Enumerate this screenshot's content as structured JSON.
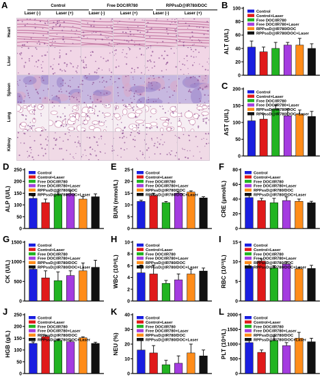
{
  "histology": {
    "panel_label": "A",
    "groups": [
      "Control",
      "Free DOC/IR780",
      "RPPssD@IR780/DOC"
    ],
    "conditions": [
      "Laser (-)",
      "Laser (+)",
      "Laser (-)",
      "Laser (+)",
      "Laser (-)",
      "Laser (+)"
    ],
    "organs": [
      "Heart",
      "Liver",
      "Spleen",
      "Lung",
      "Kidney"
    ]
  },
  "legend_colors": [
    "#1a1ee0",
    "#e01a1a",
    "#22b422",
    "#a43ce0",
    "#ff8c1a",
    "#111111"
  ],
  "chart_data": [
    {
      "panel": "B",
      "type": "bar",
      "ylabel": "ALT (U/L)",
      "ylim": [
        0,
        100
      ],
      "yticks": [
        0,
        20,
        40,
        60,
        80,
        100
      ],
      "series": [
        {
          "name": "Control",
          "values": [
            42
          ]
        },
        {
          "name": "Control+Laser",
          "values": [
            35
          ]
        },
        {
          "name": "Free DOC/IR780",
          "values": [
            40
          ]
        },
        {
          "name": "Free DOC/IR780+Laser",
          "values": [
            45
          ]
        },
        {
          "name": "RPPssD@IR780/DOC",
          "values": [
            45
          ]
        },
        {
          "name": "RPPssD@IR780/DOC+Laser",
          "values": [
            40
          ]
        }
      ],
      "errors": [
        9,
        7,
        9,
        4,
        10,
        7
      ]
    },
    {
      "panel": "C",
      "type": "bar",
      "ylabel": "AST (U/L)",
      "ylim": [
        0,
        200
      ],
      "yticks": [
        0,
        50,
        100,
        150,
        200
      ],
      "series": [
        {
          "name": "Control",
          "values": [
            105
          ]
        },
        {
          "name": "Control+Laser",
          "values": [
            110
          ]
        },
        {
          "name": "Free DOC/IR780",
          "values": [
            140
          ]
        },
        {
          "name": "Free DOC/IR780+Laser",
          "values": [
            120
          ]
        },
        {
          "name": "RPPssD@IR780/DOC",
          "values": [
            125
          ]
        },
        {
          "name": "RPPssD@IR780/DOC+Laser",
          "values": [
            118
          ]
        }
      ],
      "errors": [
        20,
        15,
        12,
        20,
        12,
        15
      ]
    },
    {
      "panel": "D",
      "type": "bar",
      "ylabel": "ALP (U/L)",
      "ylim": [
        0,
        250
      ],
      "yticks": [
        0,
        50,
        100,
        150,
        200,
        250
      ],
      "series": [
        {
          "name": "Control",
          "values": [
            128
          ]
        },
        {
          "name": "Control+Laser",
          "values": [
            110
          ]
        },
        {
          "name": "Free DOC/IR780",
          "values": [
            145
          ]
        },
        {
          "name": "Free DOC/IR780+Laser",
          "values": [
            148
          ]
        },
        {
          "name": "RPPssD@IR780/DOC",
          "values": [
            125
          ]
        },
        {
          "name": "RPPssD@IR780/DOC+Laser",
          "values": [
            135
          ]
        }
      ],
      "errors": [
        10,
        15,
        10,
        12,
        10,
        12
      ]
    },
    {
      "panel": "E",
      "type": "bar",
      "ylabel": "BUN (mmol/L)",
      "ylim": [
        0,
        25
      ],
      "yticks": [
        0,
        5,
        10,
        15,
        20,
        25
      ],
      "series": [
        {
          "name": "Control",
          "values": [
            11.5
          ]
        },
        {
          "name": "Control+Laser",
          "values": [
            14
          ]
        },
        {
          "name": "Free DOC/IR780",
          "values": [
            11
          ]
        },
        {
          "name": "Free DOC/IR780+Laser",
          "values": [
            15
          ]
        },
        {
          "name": "RPPssD@IR780/DOC",
          "values": [
            15.5
          ]
        },
        {
          "name": "RPPssD@IR780/DOC+Laser",
          "values": [
            13
          ]
        }
      ],
      "errors": [
        0.5,
        1,
        0.5,
        0.5,
        0.5,
        0.5
      ]
    },
    {
      "panel": "F",
      "type": "bar",
      "ylabel": "CRE (μmol/L)",
      "ylim": [
        0,
        80
      ],
      "yticks": [
        0,
        20,
        40,
        60,
        80
      ],
      "series": [
        {
          "name": "Control",
          "values": [
            42
          ]
        },
        {
          "name": "Control+Laser",
          "values": [
            38
          ]
        },
        {
          "name": "Free DOC/IR780",
          "values": [
            35
          ]
        },
        {
          "name": "Free DOC/IR780+Laser",
          "values": [
            38
          ]
        },
        {
          "name": "RPPssD@IR780/DOC",
          "values": [
            37
          ]
        },
        {
          "name": "RPPssD@IR780/DOC+Laser",
          "values": [
            35
          ]
        }
      ],
      "errors": [
        5,
        3,
        6,
        5,
        3,
        2
      ]
    },
    {
      "panel": "G",
      "type": "bar",
      "ylabel": "CK (U/L)",
      "ylim": [
        0,
        1500
      ],
      "yticks": [
        0,
        500,
        1000,
        1500
      ],
      "series": [
        {
          "name": "Control",
          "values": [
            810
          ]
        },
        {
          "name": "Control+Laser",
          "values": [
            590
          ]
        },
        {
          "name": "Free DOC/IR780",
          "values": [
            520
          ]
        },
        {
          "name": "Free DOC/IR780+Laser",
          "values": [
            650
          ]
        },
        {
          "name": "RPPssD@IR780/DOC",
          "values": [
            770
          ]
        },
        {
          "name": "RPPssD@IR780/DOC+Laser",
          "values": [
            860
          ]
        }
      ],
      "errors": [
        60,
        180,
        220,
        120,
        200,
        180
      ]
    },
    {
      "panel": "H",
      "type": "bar",
      "ylabel": "WBC (10⁹/L)",
      "ylim": [
        0,
        10
      ],
      "yticks": [
        0,
        2,
        4,
        6,
        8,
        10
      ],
      "series": [
        {
          "name": "Control",
          "values": [
            4.8
          ]
        },
        {
          "name": "Control+Laser",
          "values": [
            4.6
          ]
        },
        {
          "name": "Free DOC/IR780",
          "values": [
            3.0
          ]
        },
        {
          "name": "Free DOC/IR780+Laser",
          "values": [
            3.6
          ]
        },
        {
          "name": "RPPssD@IR780/DOC",
          "values": [
            4.6
          ]
        },
        {
          "name": "RPPssD@IR780/DOC+Laser",
          "values": [
            5.1
          ]
        }
      ],
      "errors": [
        1.3,
        1.5,
        0.5,
        1,
        0.8,
        0.5
      ]
    },
    {
      "panel": "I",
      "type": "bar",
      "ylabel": "RBC (10¹²/L)",
      "ylim": [
        0,
        15
      ],
      "yticks": [
        0,
        5,
        10,
        15
      ],
      "series": [
        {
          "name": "Control",
          "values": [
            8.8
          ]
        },
        {
          "name": "Control+Laser",
          "values": [
            10.2
          ]
        },
        {
          "name": "Free DOC/IR780",
          "values": [
            8.4
          ]
        },
        {
          "name": "Free DOC/IR780+Laser",
          "values": [
            9.4
          ]
        },
        {
          "name": "RPPssD@IR780/DOC",
          "values": [
            8.2
          ]
        },
        {
          "name": "RPPssD@IR780/DOC+Laser",
          "values": [
            8.3
          ]
        }
      ],
      "errors": [
        0.8,
        0.5,
        0.6,
        0.6,
        0.4,
        0.8
      ]
    },
    {
      "panel": "J",
      "type": "bar",
      "ylabel": "HGB (g/L)",
      "ylim": [
        0,
        250
      ],
      "yticks": [
        0,
        50,
        100,
        150,
        200,
        250
      ],
      "series": [
        {
          "name": "Control",
          "values": [
            128
          ]
        },
        {
          "name": "Control+Laser",
          "values": [
            157
          ]
        },
        {
          "name": "Free DOC/IR780",
          "values": [
            140
          ]
        },
        {
          "name": "Free DOC/IR780+Laser",
          "values": [
            135
          ]
        },
        {
          "name": "RPPssD@IR780/DOC",
          "values": [
            152
          ]
        },
        {
          "name": "RPPssD@IR780/DOC+Laser",
          "values": [
            128
          ]
        }
      ],
      "errors": [
        6,
        5,
        5,
        5,
        4,
        5
      ]
    },
    {
      "panel": "K",
      "type": "bar",
      "ylabel": "NEU (%)",
      "ylim": [
        0,
        40
      ],
      "yticks": [
        0,
        10,
        20,
        30,
        40
      ],
      "series": [
        {
          "name": "Control",
          "values": [
            16
          ]
        },
        {
          "name": "Control+Laser",
          "values": [
            14
          ]
        },
        {
          "name": "Free DOC/IR780",
          "values": [
            6
          ]
        },
        {
          "name": "Free DOC/IR780+Laser",
          "values": [
            7
          ]
        },
        {
          "name": "RPPssD@IR780/DOC",
          "values": [
            14
          ]
        },
        {
          "name": "RPPssD@IR780/DOC+Laser",
          "values": [
            12
          ]
        }
      ],
      "errors": [
        8,
        5,
        3,
        5,
        6,
        4
      ]
    },
    {
      "panel": "L",
      "type": "bar",
      "ylabel": "PLT (10⁹/L)",
      "ylim": [
        0,
        2000
      ],
      "yticks": [
        0,
        500,
        1000,
        1500,
        2000
      ],
      "series": [
        {
          "name": "Control",
          "values": [
            1050
          ]
        },
        {
          "name": "Control+Laser",
          "values": [
            720
          ]
        },
        {
          "name": "Free DOC/IR780",
          "values": [
            1120
          ]
        },
        {
          "name": "Free DOC/IR780+Laser",
          "values": [
            950
          ]
        },
        {
          "name": "RPPssD@IR780/DOC",
          "values": [
            1200
          ]
        },
        {
          "name": "RPPssD@IR780/DOC+Laser",
          "values": [
            1080
          ]
        }
      ],
      "errors": [
        100,
        80,
        150,
        100,
        200,
        120
      ]
    }
  ]
}
